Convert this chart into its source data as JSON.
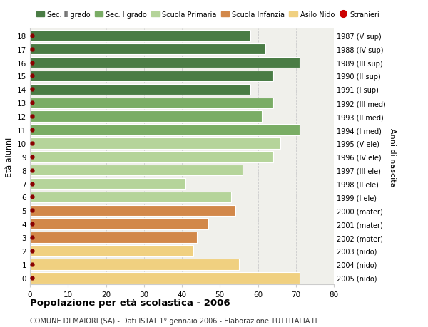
{
  "ages": [
    18,
    17,
    16,
    15,
    14,
    13,
    12,
    11,
    10,
    9,
    8,
    7,
    6,
    5,
    4,
    3,
    2,
    1,
    0
  ],
  "values": [
    58,
    62,
    71,
    64,
    58,
    64,
    61,
    71,
    66,
    64,
    56,
    41,
    53,
    54,
    47,
    44,
    43,
    55,
    71
  ],
  "right_labels": [
    "1987 (V sup)",
    "1988 (IV sup)",
    "1989 (III sup)",
    "1990 (II sup)",
    "1991 (I sup)",
    "1992 (III med)",
    "1993 (II med)",
    "1994 (I med)",
    "1995 (V ele)",
    "1996 (IV ele)",
    "1997 (III ele)",
    "1998 (II ele)",
    "1999 (I ele)",
    "2000 (mater)",
    "2001 (mater)",
    "2002 (mater)",
    "2003 (nido)",
    "2004 (nido)",
    "2005 (nido)"
  ],
  "bar_colors": [
    "#4a7c45",
    "#4a7c45",
    "#4a7c45",
    "#4a7c45",
    "#4a7c45",
    "#7aad65",
    "#7aad65",
    "#7aad65",
    "#b5d49a",
    "#b5d49a",
    "#b5d49a",
    "#b5d49a",
    "#b5d49a",
    "#d2884a",
    "#d2884a",
    "#d2884a",
    "#f0d080",
    "#f0d080",
    "#f0d080"
  ],
  "legend_labels": [
    "Sec. II grado",
    "Sec. I grado",
    "Scuola Primaria",
    "Scuola Infanzia",
    "Asilo Nido",
    "Stranieri"
  ],
  "legend_colors": [
    "#4a7c45",
    "#7aad65",
    "#b5d49a",
    "#d2884a",
    "#f0d080",
    "#cc0000"
  ],
  "ylabel": "Età alunni",
  "right_ylabel": "Anni di nascita",
  "title": "Popolazione per età scolastica - 2006",
  "subtitle": "COMUNE DI MAIORI (SA) - Dati ISTAT 1° gennaio 2006 - Elaborazione TUTTITALIA.IT",
  "xlim": [
    0,
    80
  ],
  "xticks": [
    0,
    10,
    20,
    30,
    40,
    50,
    60,
    70,
    80
  ],
  "bg_color": "#f0f0eb",
  "grid_color": "#cccccc",
  "bar_height": 0.82,
  "dot_color": "#8b0000",
  "white_bg": "#ffffff"
}
